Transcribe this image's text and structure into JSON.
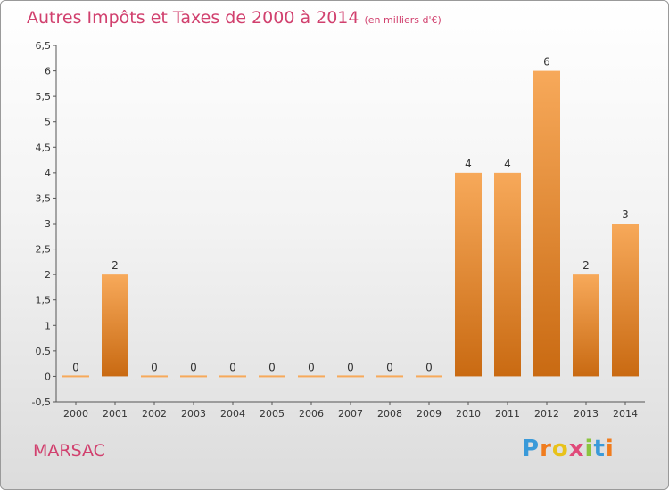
{
  "title": "Autres Impôts et Taxes de 2000 à 2014",
  "title_unit": "(en milliers d'€)",
  "commune": "MARSAC",
  "logo": {
    "letters": [
      "P",
      "r",
      "o",
      "x",
      "i",
      "t",
      "i"
    ],
    "colors": [
      "#3a9ad9",
      "#f07c1e",
      "#e8c21a",
      "#e04a7a",
      "#8bc43f",
      "#3a9ad9",
      "#f07c1e"
    ]
  },
  "colors": {
    "title": "#d1406e",
    "bar_top": "#f7a95a",
    "bar_bottom": "#c96a12"
  },
  "chart_data": {
    "type": "bar",
    "categories": [
      "2000",
      "2001",
      "2002",
      "2003",
      "2004",
      "2005",
      "2006",
      "2007",
      "2008",
      "2009",
      "2010",
      "2011",
      "2012",
      "2013",
      "2014"
    ],
    "values": [
      0,
      2,
      0,
      0,
      0,
      0,
      0,
      0,
      0,
      0,
      4,
      4,
      6,
      2,
      3
    ],
    "value_labels": [
      "0",
      "2",
      "0",
      "0",
      "0",
      "0",
      "0",
      "0",
      "0",
      "0",
      "4",
      "4",
      "6",
      "2",
      "3"
    ],
    "yticks": [
      "-0,5",
      "0",
      "0,5",
      "1",
      "1,5",
      "2",
      "2,5",
      "3",
      "3,5",
      "4",
      "4,5",
      "5",
      "5,5",
      "6",
      "6,5"
    ],
    "ytick_values": [
      -0.5,
      0,
      0.5,
      1,
      1.5,
      2,
      2.5,
      3,
      3.5,
      4,
      4.5,
      5,
      5.5,
      6,
      6.5
    ],
    "ylim": [
      -0.5,
      6.5
    ],
    "grid": false,
    "xlabel": "",
    "ylabel": ""
  }
}
